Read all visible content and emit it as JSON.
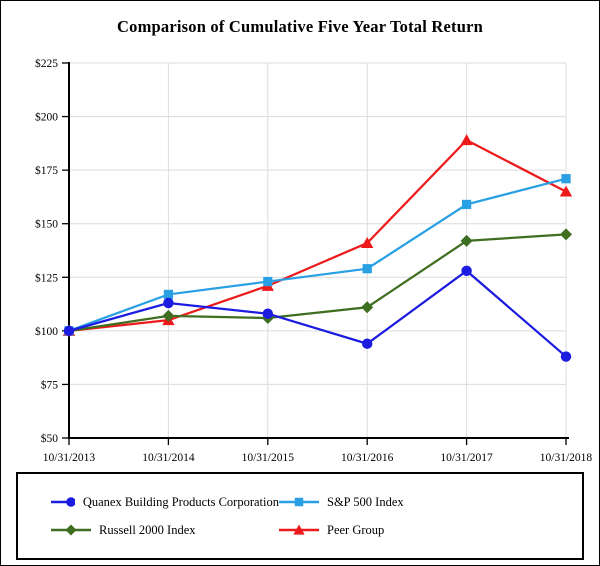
{
  "chart_data": {
    "type": "line",
    "title": "Comparison of Cumulative Five Year Total Return",
    "x_labels": [
      "10/31/2013",
      "10/31/2014",
      "10/31/2015",
      "10/31/2016",
      "10/31/2017",
      "10/31/2018"
    ],
    "y_ticks": [
      50,
      75,
      100,
      125,
      150,
      175,
      200,
      225
    ],
    "y_tick_prefix": "$",
    "ylim": [
      50,
      225
    ],
    "xlabel": "",
    "ylabel": "",
    "grid": true,
    "legend_position": "bottom-box",
    "colors": {
      "axis": "#000000",
      "gridline": "#dcdcdc",
      "background": "#ffffff"
    },
    "series": [
      {
        "name": "Quanex Building Products Corporation",
        "color": "#1c1ce0",
        "marker": "circle",
        "values": [
          100,
          113,
          108,
          94,
          128,
          88
        ]
      },
      {
        "name": "S&P 500 Index",
        "color": "#29a0e4",
        "marker": "square",
        "values": [
          100,
          117,
          123,
          129,
          159,
          171
        ]
      },
      {
        "name": "Russell 2000 Index",
        "color": "#3e6e20",
        "marker": "diamond",
        "values": [
          100,
          107,
          106,
          111,
          142,
          145
        ]
      },
      {
        "name": "Peer Group",
        "color": "#ec1a1a",
        "marker": "triangle",
        "values": [
          100,
          105,
          121,
          141,
          189,
          165
        ]
      }
    ]
  }
}
